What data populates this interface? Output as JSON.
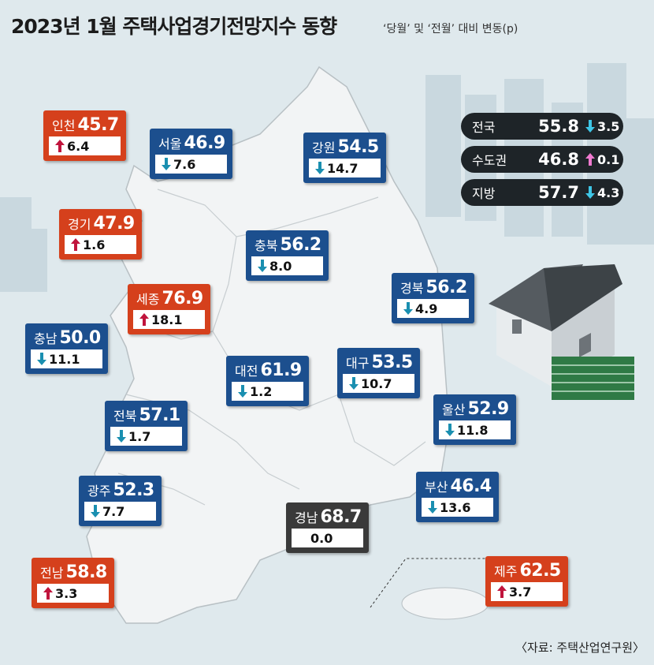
{
  "header": {
    "title": "2023년 1월 주택사업경기전망지수 동향",
    "subtitle": "‘당월’ 및 ‘전월’ 대비 변동(p)"
  },
  "summary": [
    {
      "name": "전국",
      "index": "55.8",
      "change": "3.5",
      "trend": "down"
    },
    {
      "name": "수도권",
      "index": "46.8",
      "change": "0.1",
      "trend": "up"
    },
    {
      "name": "지방",
      "index": "57.7",
      "change": "4.3",
      "trend": "down"
    }
  ],
  "regions": [
    {
      "name": "인천",
      "index": "45.7",
      "change": "6.4",
      "trend": "up"
    },
    {
      "name": "서울",
      "index": "46.9",
      "change": "7.6",
      "trend": "down"
    },
    {
      "name": "강원",
      "index": "54.5",
      "change": "14.7",
      "trend": "down"
    },
    {
      "name": "경기",
      "index": "47.9",
      "change": "1.6",
      "trend": "up"
    },
    {
      "name": "충북",
      "index": "56.2",
      "change": "8.0",
      "trend": "down"
    },
    {
      "name": "경북",
      "index": "56.2",
      "change": "4.9",
      "trend": "down"
    },
    {
      "name": "세종",
      "index": "76.9",
      "change": "18.1",
      "trend": "up"
    },
    {
      "name": "충남",
      "index": "50.0",
      "change": "11.1",
      "trend": "down"
    },
    {
      "name": "대전",
      "index": "61.9",
      "change": "1.2",
      "trend": "down"
    },
    {
      "name": "대구",
      "index": "53.5",
      "change": "10.7",
      "trend": "down"
    },
    {
      "name": "울산",
      "index": "52.9",
      "change": "11.8",
      "trend": "down"
    },
    {
      "name": "전북",
      "index": "57.1",
      "change": "1.7",
      "trend": "down"
    },
    {
      "name": "광주",
      "index": "52.3",
      "change": "7.7",
      "trend": "down"
    },
    {
      "name": "부산",
      "index": "46.4",
      "change": "13.6",
      "trend": "down"
    },
    {
      "name": "경남",
      "index": "68.7",
      "change": "0.0",
      "trend": "none"
    },
    {
      "name": "전남",
      "index": "58.8",
      "change": "3.3",
      "trend": "up"
    },
    {
      "name": "제주",
      "index": "62.5",
      "change": "3.7",
      "trend": "up"
    }
  ],
  "source": "〈자료: 주택산업연구원〉"
}
